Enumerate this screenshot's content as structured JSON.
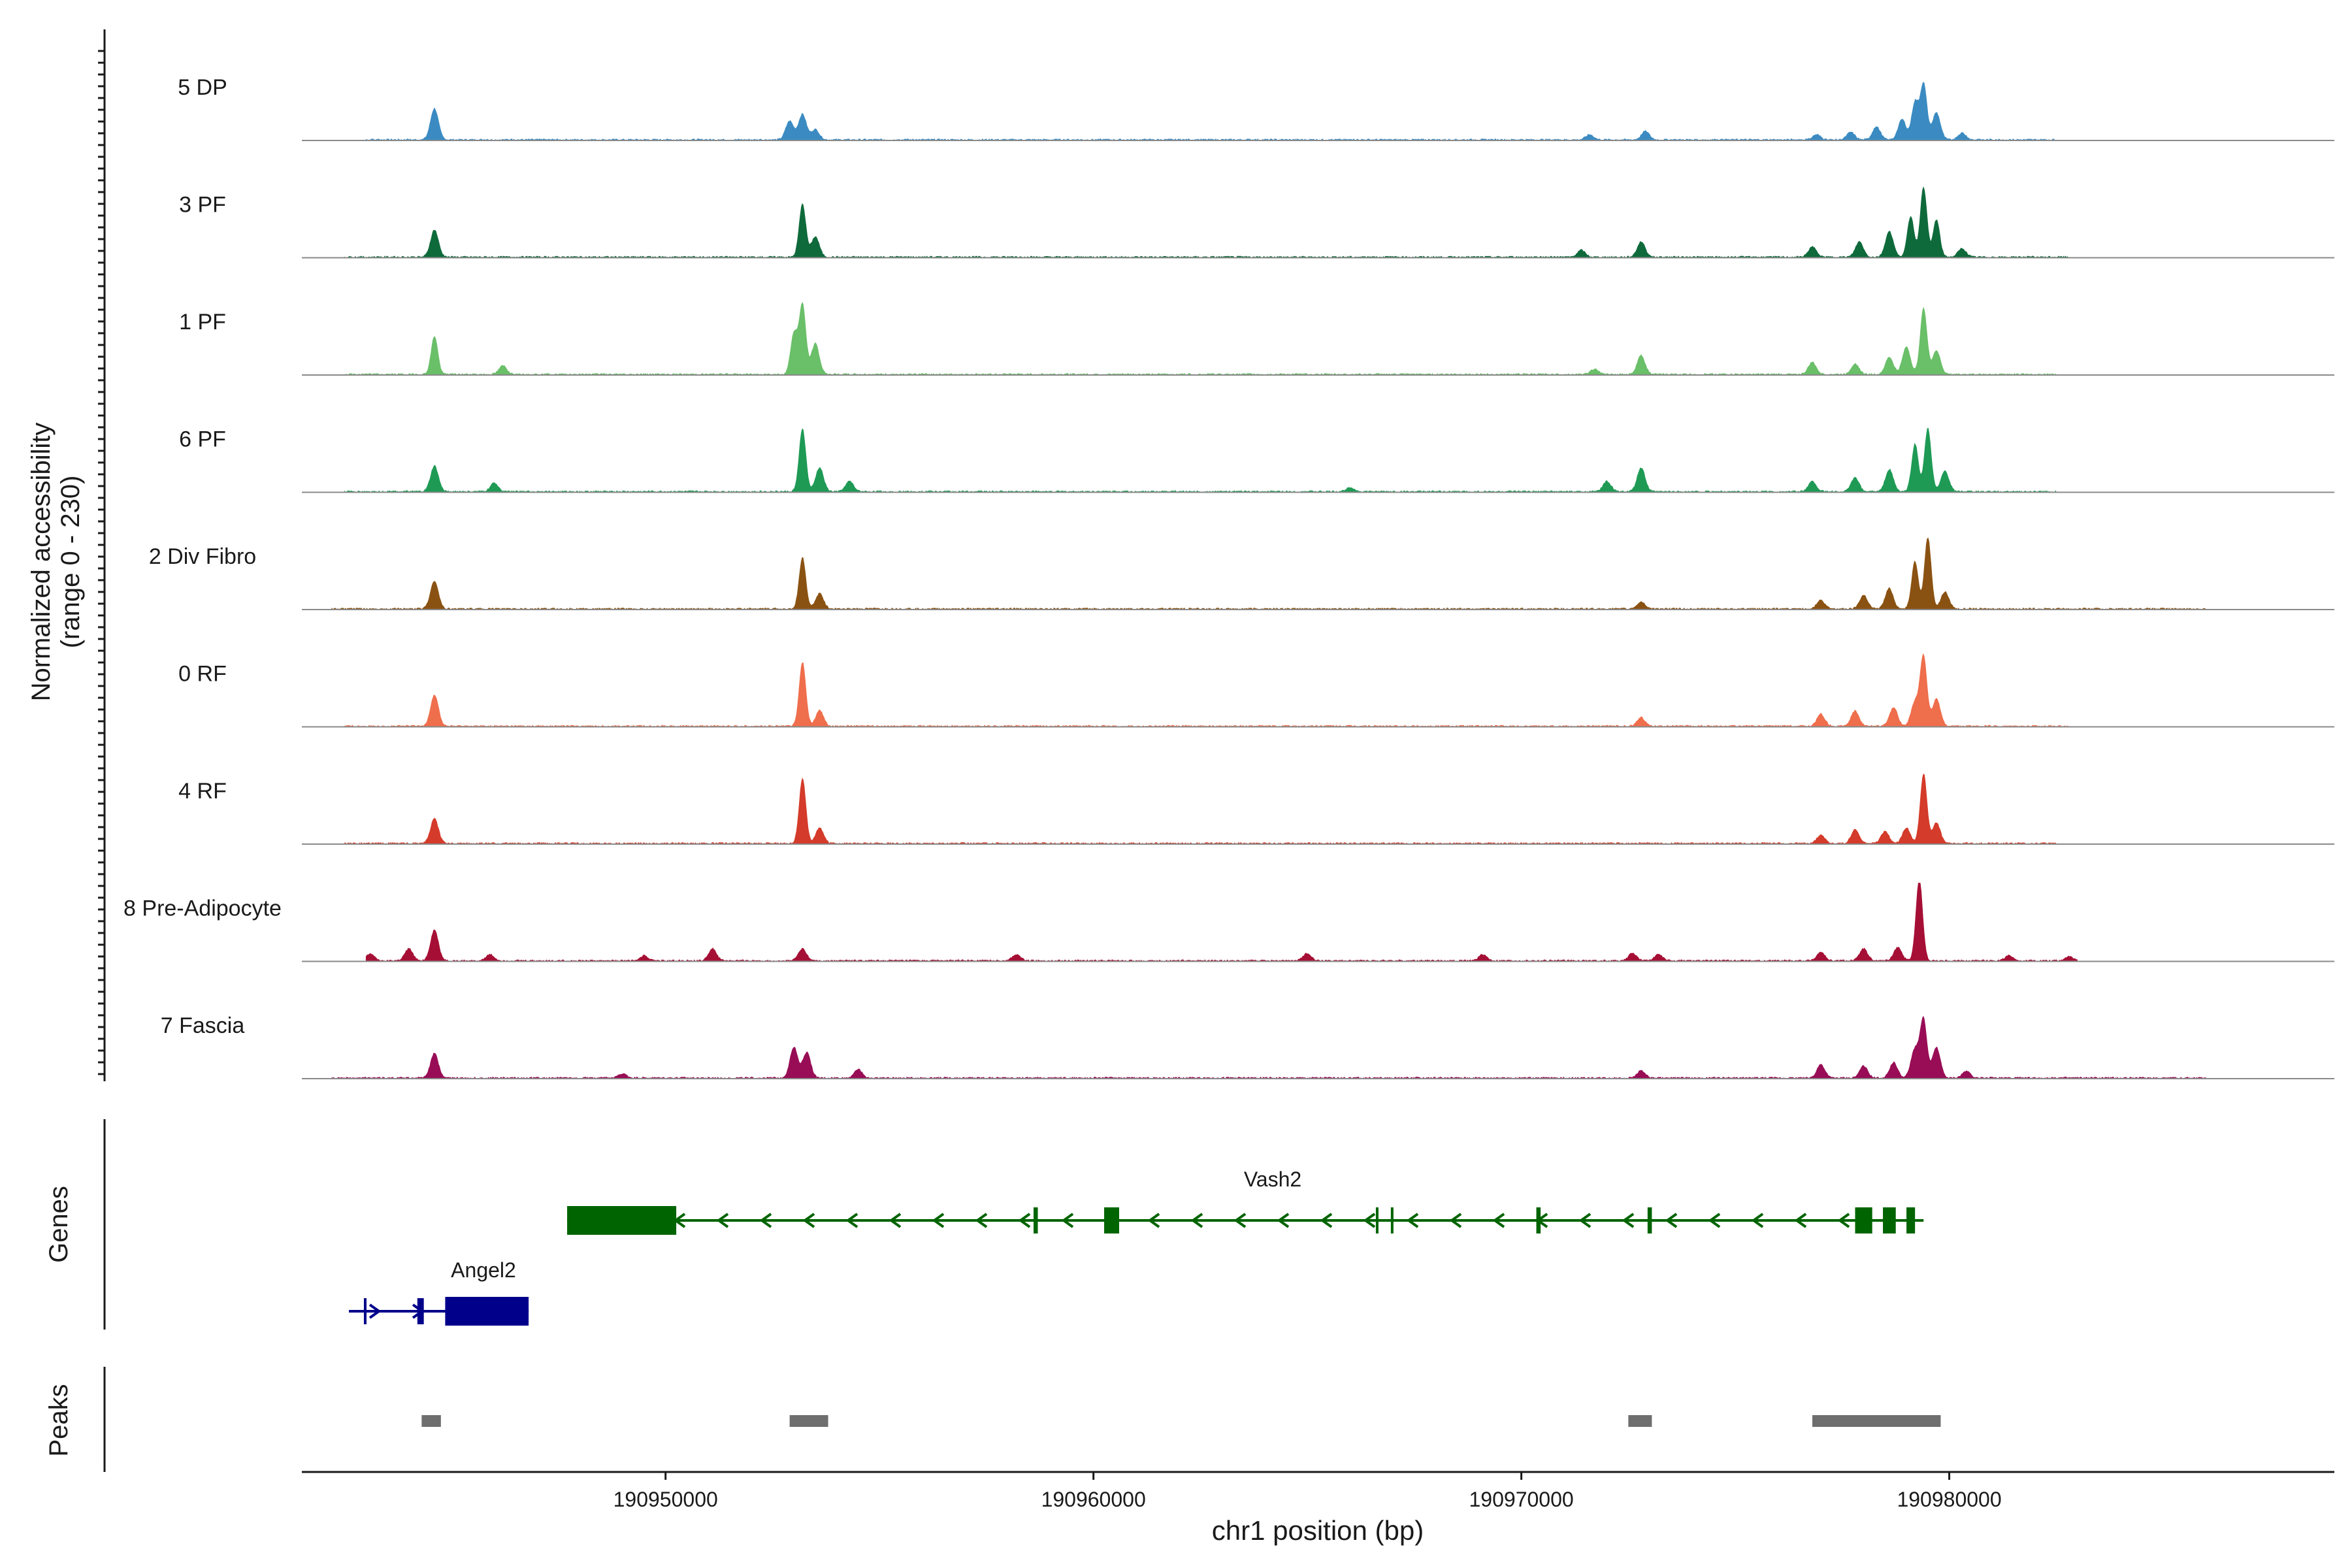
{
  "chart_data": {
    "type": "area",
    "title": "",
    "ylabel_main": "Normalized accessibility",
    "ylabel_range": "(range 0 - 230)",
    "ylim": [
      0,
      230
    ],
    "xlim": [
      190941500,
      190989000
    ],
    "xlabel": "chr1 position (bp)",
    "xticks": [
      {
        "value": 190950000,
        "label": "190950000"
      },
      {
        "value": 190960000,
        "label": "190960000"
      },
      {
        "value": 190970000,
        "label": "190970000"
      },
      {
        "value": 190980000,
        "label": "190980000"
      }
    ],
    "coverage_tracks": [
      {
        "name": "5 DP",
        "color": "#3b8bc2",
        "peaks": [
          [
            190944600,
            92
          ],
          [
            190952900,
            55
          ],
          [
            190953200,
            75
          ],
          [
            190953500,
            30
          ],
          [
            190971600,
            15
          ],
          [
            190972900,
            25
          ],
          [
            190976900,
            15
          ],
          [
            190977700,
            22
          ],
          [
            190978300,
            38
          ],
          [
            190978900,
            60
          ],
          [
            190979200,
            110
          ],
          [
            190979400,
            165
          ],
          [
            190979700,
            80
          ],
          [
            190980300,
            20
          ]
        ],
        "range": [
          190943000,
          190982500
        ]
      },
      {
        "name": "3 PF",
        "color": "#0f6a3b",
        "peaks": [
          [
            190944600,
            80
          ],
          [
            190953200,
            155
          ],
          [
            190953500,
            60
          ],
          [
            190971400,
            20
          ],
          [
            190972800,
            45
          ],
          [
            190976800,
            30
          ],
          [
            190977900,
            45
          ],
          [
            190978600,
            75
          ],
          [
            190979100,
            120
          ],
          [
            190979400,
            205
          ],
          [
            190979700,
            110
          ],
          [
            190980300,
            25
          ]
        ],
        "range": [
          190942500,
          190982800
        ]
      },
      {
        "name": "1 PF",
        "color": "#6abf69",
        "peaks": [
          [
            190944600,
            112
          ],
          [
            190946200,
            25
          ],
          [
            190953000,
            120
          ],
          [
            190953200,
            205
          ],
          [
            190953500,
            90
          ],
          [
            190971700,
            15
          ],
          [
            190972800,
            55
          ],
          [
            190976800,
            35
          ],
          [
            190977800,
            30
          ],
          [
            190978600,
            50
          ],
          [
            190979000,
            80
          ],
          [
            190979400,
            195
          ],
          [
            190979700,
            70
          ]
        ],
        "range": [
          190942500,
          190982500
        ]
      },
      {
        "name": "6 PF",
        "color": "#1e9a55",
        "peaks": [
          [
            190944600,
            75
          ],
          [
            190946000,
            25
          ],
          [
            190953200,
            185
          ],
          [
            190953600,
            70
          ],
          [
            190954300,
            30
          ],
          [
            190966000,
            12
          ],
          [
            190972000,
            30
          ],
          [
            190972800,
            70
          ],
          [
            190976800,
            30
          ],
          [
            190977800,
            40
          ],
          [
            190978600,
            65
          ],
          [
            190979200,
            140
          ],
          [
            190979500,
            185
          ],
          [
            190979900,
            60
          ]
        ],
        "range": [
          190942500,
          190982500
        ]
      },
      {
        "name": "2 Div Fibro",
        "color": "#8a5212",
        "peaks": [
          [
            190944600,
            82
          ],
          [
            190953200,
            150
          ],
          [
            190953600,
            45
          ],
          [
            190972800,
            20
          ],
          [
            190977000,
            25
          ],
          [
            190978000,
            40
          ],
          [
            190978600,
            60
          ],
          [
            190979200,
            140
          ],
          [
            190979500,
            210
          ],
          [
            190979900,
            50
          ]
        ],
        "range": [
          190942200,
          190986000
        ]
      },
      {
        "name": "0 RF",
        "color": "#ef6e4c",
        "peaks": [
          [
            190944600,
            92
          ],
          [
            190953200,
            188
          ],
          [
            190953600,
            45
          ],
          [
            190972800,
            25
          ],
          [
            190977000,
            35
          ],
          [
            190977800,
            45
          ],
          [
            190978700,
            55
          ],
          [
            190979200,
            70
          ],
          [
            190979400,
            205
          ],
          [
            190979700,
            80
          ]
        ],
        "range": [
          190942500,
          190982800
        ]
      },
      {
        "name": "4 RF",
        "color": "#d43b2a",
        "peaks": [
          [
            190944600,
            72
          ],
          [
            190953200,
            190
          ],
          [
            190953600,
            45
          ],
          [
            190977000,
            25
          ],
          [
            190977800,
            40
          ],
          [
            190978500,
            35
          ],
          [
            190979000,
            45
          ],
          [
            190979400,
            205
          ],
          [
            190979700,
            60
          ]
        ],
        "range": [
          190942500,
          190982500
        ]
      },
      {
        "name": "8 Pre-Adipocyte",
        "color": "#a60f35",
        "peaks": [
          [
            190943100,
            20
          ],
          [
            190944000,
            35
          ],
          [
            190944600,
            90
          ],
          [
            190945900,
            18
          ],
          [
            190949500,
            15
          ],
          [
            190951100,
            35
          ],
          [
            190953200,
            35
          ],
          [
            190958200,
            18
          ],
          [
            190965000,
            22
          ],
          [
            190969100,
            18
          ],
          [
            190972600,
            22
          ],
          [
            190973200,
            18
          ],
          [
            190977000,
            25
          ],
          [
            190978000,
            35
          ],
          [
            190978800,
            40
          ],
          [
            190979300,
            240
          ],
          [
            190981400,
            15
          ],
          [
            190982800,
            12
          ]
        ],
        "range": [
          190943000,
          190983000
        ]
      },
      {
        "name": "7 Fascia",
        "color": "#980d56",
        "peaks": [
          [
            190944600,
            72
          ],
          [
            190949000,
            12
          ],
          [
            190953000,
            90
          ],
          [
            190953300,
            75
          ],
          [
            190954500,
            25
          ],
          [
            190972800,
            22
          ],
          [
            190977000,
            40
          ],
          [
            190978000,
            35
          ],
          [
            190978700,
            45
          ],
          [
            190979200,
            85
          ],
          [
            190979400,
            170
          ],
          [
            190979700,
            90
          ],
          [
            190980400,
            20
          ]
        ],
        "range": [
          190942200,
          190986000
        ]
      }
    ],
    "genes": {
      "track_label": "Genes",
      "items": [
        {
          "name": "Vash2",
          "color": "#006400",
          "strand": "-",
          "start": 190947700,
          "end": 190979400,
          "exons": [
            [
              190947700,
              190950250
            ],
            [
              190958600,
              190958700
            ],
            [
              190960250,
              190960600
            ],
            [
              190966600,
              190966650
            ],
            [
              190966950,
              190967000
            ],
            [
              190970350,
              190970450
            ],
            [
              190972950,
              190973050
            ],
            [
              190977800,
              190978200
            ],
            [
              190978450,
              190978750
            ],
            [
              190979000,
              190979200
            ]
          ]
        },
        {
          "name": "Angel2",
          "color": "#00008b",
          "strand": "+",
          "start": 190942600,
          "end": 190946800,
          "exons": [
            [
              190942950,
              190943000
            ],
            [
              190944200,
              190944350
            ],
            [
              190944850,
              190946800
            ]
          ]
        }
      ]
    },
    "peaks_track": {
      "track_label": "Peaks",
      "color": "#6e6e6e",
      "regions": [
        [
          190944300,
          190944750
        ],
        [
          190952900,
          190953800
        ],
        [
          190972500,
          190973050
        ],
        [
          190976800,
          190979800
        ]
      ]
    }
  }
}
